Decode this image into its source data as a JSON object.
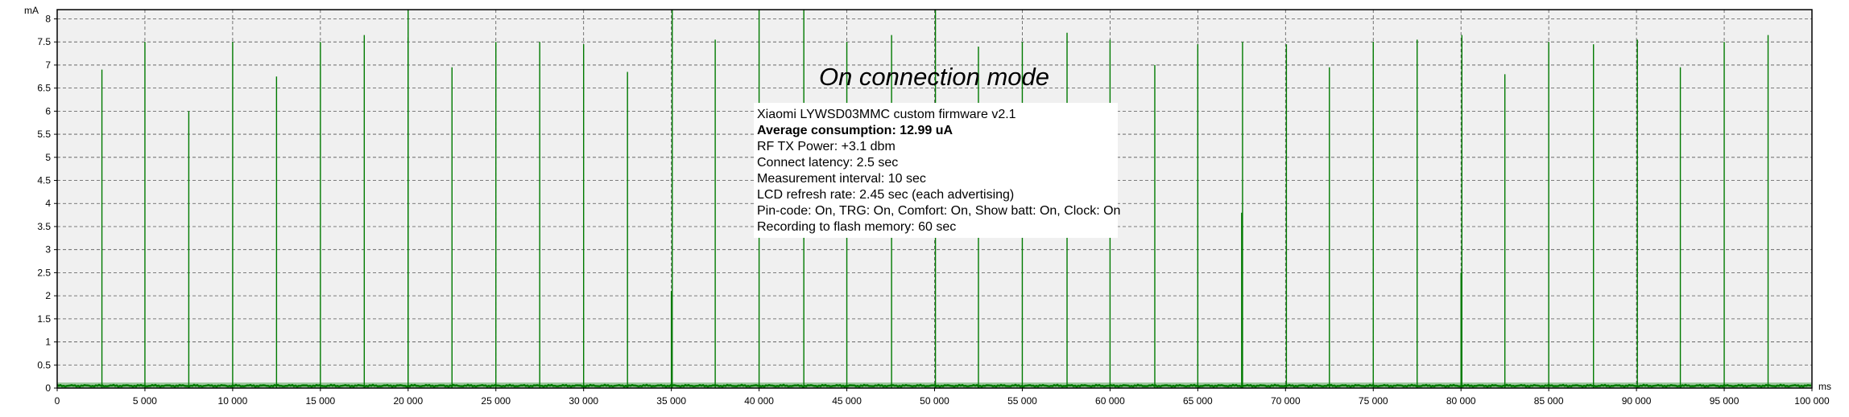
{
  "chart_data": {
    "type": "line",
    "title": "On connection mode",
    "ylabel": "mA",
    "xlabel": "ms",
    "xlim": [
      0,
      100000
    ],
    "ylim": [
      0,
      8.2
    ],
    "grid": true,
    "baseline_ma": 0.05,
    "x_ticks": [
      "0",
      "5 000",
      "10 000",
      "15 000",
      "20 000",
      "25 000",
      "30 000",
      "35 000",
      "40 000",
      "45 000",
      "50 000",
      "55 000",
      "60 000",
      "65 000",
      "70 000",
      "75 000",
      "80 000",
      "85 000",
      "90 000",
      "95 000",
      "100 000"
    ],
    "x_tick_values": [
      0,
      5000,
      10000,
      15000,
      20000,
      25000,
      30000,
      35000,
      40000,
      45000,
      50000,
      55000,
      60000,
      65000,
      70000,
      75000,
      80000,
      85000,
      90000,
      95000,
      100000
    ],
    "y_ticks": [
      "0",
      "0.5",
      "1",
      "1.5",
      "2",
      "2.5",
      "3",
      "3.5",
      "4",
      "4.5",
      "5",
      "5.5",
      "6",
      "6.5",
      "7",
      "7.5",
      "8"
    ],
    "y_tick_values": [
      0,
      0.5,
      1,
      1.5,
      2,
      2.5,
      3,
      3.5,
      4,
      4.5,
      5,
      5.5,
      6,
      6.5,
      7,
      7.5,
      8
    ],
    "series": [
      {
        "color": "#007a00",
        "spikes": [
          {
            "x": 2550,
            "y": 6.9
          },
          {
            "x": 5000,
            "y": 7.5
          },
          {
            "x": 7500,
            "y": 6.0
          },
          {
            "x": 10000,
            "y": 7.5
          },
          {
            "x": 12500,
            "y": 6.75
          },
          {
            "x": 15000,
            "y": 7.5
          },
          {
            "x": 17500,
            "y": 7.65
          },
          {
            "x": 20000,
            "y": 8.2
          },
          {
            "x": 20000,
            "y": 7.6
          },
          {
            "x": 22500,
            "y": 6.95
          },
          {
            "x": 25000,
            "y": 7.5
          },
          {
            "x": 27500,
            "y": 7.5
          },
          {
            "x": 30000,
            "y": 7.45
          },
          {
            "x": 32500,
            "y": 6.85
          },
          {
            "x": 35000,
            "y": 2.1
          },
          {
            "x": 35050,
            "y": 8.2
          },
          {
            "x": 37500,
            "y": 7.55
          },
          {
            "x": 40000,
            "y": 8.2
          },
          {
            "x": 42550,
            "y": 8.2
          },
          {
            "x": 45000,
            "y": 7.5
          },
          {
            "x": 47550,
            "y": 7.65
          },
          {
            "x": 50050,
            "y": 8.2
          },
          {
            "x": 52500,
            "y": 7.4
          },
          {
            "x": 55000,
            "y": 7.5
          },
          {
            "x": 57550,
            "y": 7.7
          },
          {
            "x": 60000,
            "y": 7.55
          },
          {
            "x": 62550,
            "y": 7.0
          },
          {
            "x": 65000,
            "y": 7.45
          },
          {
            "x": 67500,
            "y": 3.8
          },
          {
            "x": 67550,
            "y": 7.5
          },
          {
            "x": 70050,
            "y": 7.45
          },
          {
            "x": 72500,
            "y": 6.95
          },
          {
            "x": 75000,
            "y": 7.5
          },
          {
            "x": 77500,
            "y": 7.55
          },
          {
            "x": 80000,
            "y": 2.5
          },
          {
            "x": 80050,
            "y": 7.65
          },
          {
            "x": 82500,
            "y": 6.8
          },
          {
            "x": 85000,
            "y": 7.5
          },
          {
            "x": 87550,
            "y": 7.45
          },
          {
            "x": 90050,
            "y": 7.55
          },
          {
            "x": 92500,
            "y": 6.95
          },
          {
            "x": 95000,
            "y": 7.5
          },
          {
            "x": 97500,
            "y": 7.65
          }
        ]
      }
    ],
    "annotation": {
      "lines": [
        {
          "text": "Xiaomi LYWSD03MMC custom firmware v2.1",
          "bold": false
        },
        {
          "text": "Average consumption:  12.99 uA",
          "bold": true
        },
        {
          "text": "RF TX Power: +3.1 dbm",
          "bold": false
        },
        {
          "text": "Connect latency: 2.5 sec",
          "bold": false
        },
        {
          "text": "Measurement interval: 10 sec",
          "bold": false
        },
        {
          "text": "LCD refresh rate: 2.45 sec (each advertising)",
          "bold": false
        },
        {
          "text": "Pin-code: On, TRG: On, Comfort: On, Show batt: On, Clock: On",
          "bold": false
        },
        {
          "text": "Recording to flash memory: 60 sec",
          "bold": false
        }
      ]
    }
  }
}
